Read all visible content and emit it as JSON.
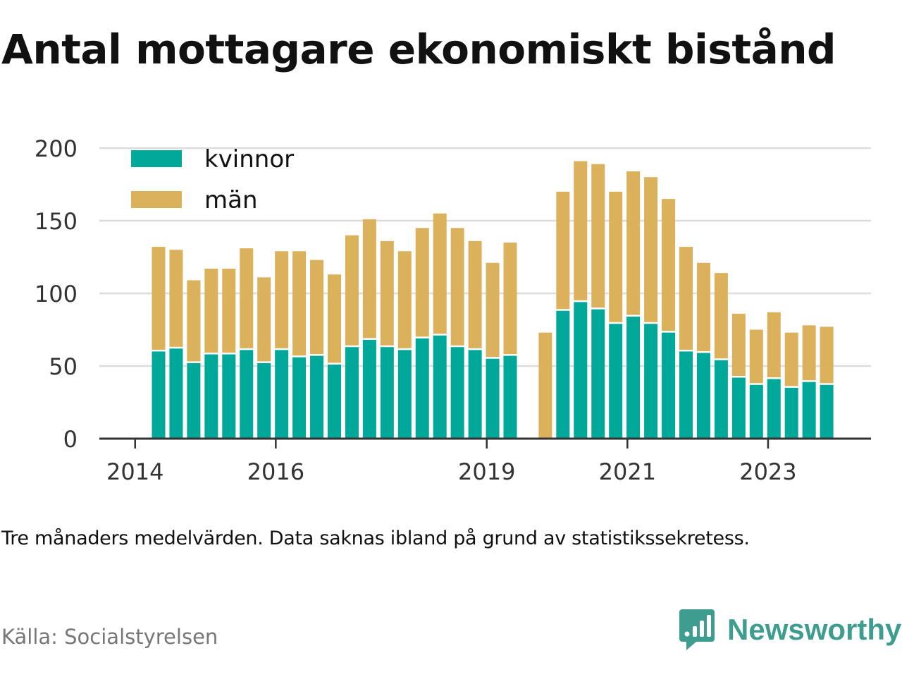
{
  "title": "Antal mottagare ekonomiskt bistånd",
  "note": "Tre månaders medelvärden. Data saknas ibland på grund av statistikssekretess.",
  "source": "Källa: Socialstyrelsen",
  "brand": {
    "name": "Newsworthy",
    "icon": "newsworthy-logo-icon",
    "color": "#3f9d8f"
  },
  "colors": {
    "kvinnor": "#00a89a",
    "man": "#dcb15c",
    "grid": "#dddddd",
    "axis": "#333333"
  },
  "chart_data": {
    "type": "bar",
    "stacked": true,
    "title": "Antal mottagare ekonomiskt bistånd",
    "xlabel": "",
    "ylabel": "",
    "ylim": [
      0,
      200
    ],
    "yticks": [
      0,
      50,
      100,
      150,
      200
    ],
    "xticks": [
      {
        "label": "2014",
        "at": "2014-01"
      },
      {
        "label": "2016",
        "at": "2016-01"
      },
      {
        "label": "2019",
        "at": "2019-01"
      },
      {
        "label": "2021",
        "at": "2021-01"
      },
      {
        "label": "2023",
        "at": "2023-01"
      }
    ],
    "grid": true,
    "legend": "top-left",
    "categories": [
      "2014-Q2",
      "2014-Q3",
      "2014-Q4",
      "2015-Q1",
      "2015-Q2",
      "2015-Q3",
      "2015-Q4",
      "2016-Q1",
      "2016-Q2",
      "2016-Q3",
      "2016-Q4",
      "2017-Q1",
      "2017-Q2",
      "2017-Q3",
      "2017-Q4",
      "2018-Q1",
      "2018-Q2",
      "2018-Q3",
      "2018-Q4",
      "2019-Q1",
      "2019-Q2",
      "2019-Q3",
      "2019-Q4",
      "2020-Q1",
      "2020-Q2",
      "2020-Q3",
      "2020-Q4",
      "2021-Q1",
      "2021-Q2",
      "2021-Q3",
      "2021-Q4",
      "2022-Q1",
      "2022-Q2",
      "2022-Q3",
      "2022-Q4",
      "2023-Q1",
      "2023-Q2",
      "2023-Q3",
      "2023-Q4"
    ],
    "series": [
      {
        "name": "kvinnor",
        "color": "#00a89a",
        "values": [
          60,
          62,
          52,
          58,
          58,
          61,
          52,
          61,
          56,
          57,
          51,
          63,
          68,
          63,
          61,
          69,
          71,
          63,
          61,
          55,
          57,
          null,
          null,
          88,
          94,
          89,
          79,
          84,
          79,
          73,
          60,
          59,
          54,
          42,
          37,
          41,
          35,
          39,
          37
        ]
      },
      {
        "name": "män",
        "color": "#dcb15c",
        "values": [
          72,
          68,
          57,
          59,
          59,
          70,
          59,
          68,
          73,
          66,
          62,
          77,
          83,
          73,
          68,
          76,
          84,
          82,
          75,
          66,
          78,
          null,
          73,
          82,
          97,
          100,
          91,
          100,
          101,
          92,
          72,
          62,
          60,
          44,
          38,
          46,
          38,
          39,
          40
        ]
      }
    ]
  }
}
